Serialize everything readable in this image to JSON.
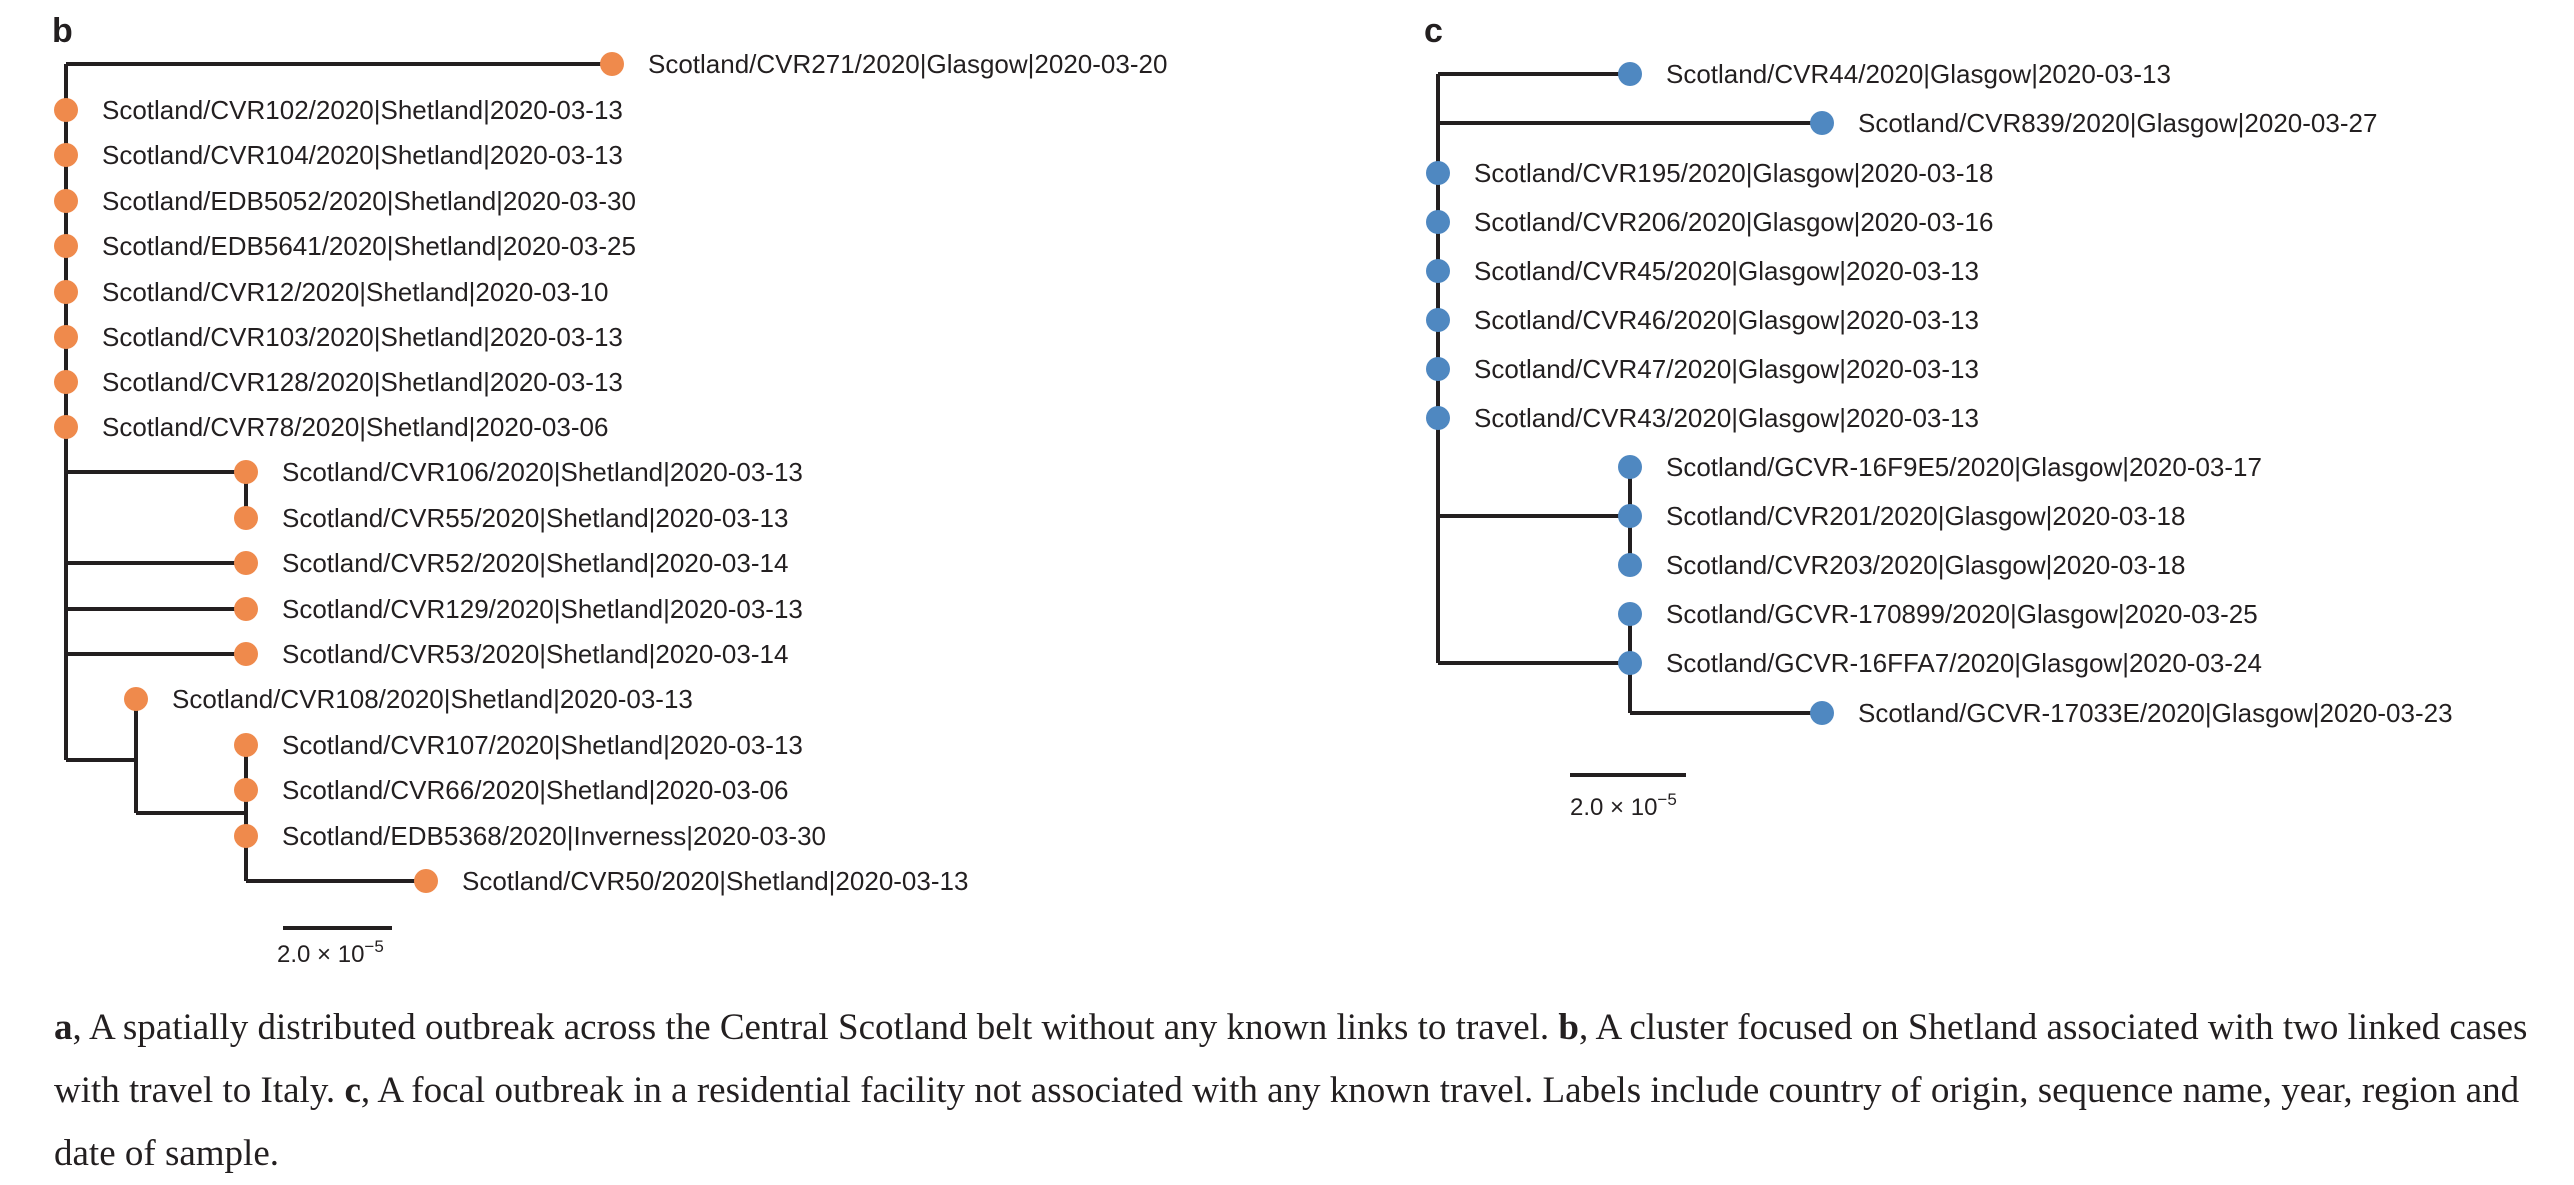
{
  "panel_b": {
    "letter": "b",
    "node_color": "#ef8a4c",
    "scale_bar": {
      "label": "2.0 × 10",
      "exponent": "−5"
    },
    "tips": [
      "Scotland/CVR271/2020|Glasgow|2020-03-20",
      "Scotland/CVR102/2020|Shetland|2020-03-13",
      "Scotland/CVR104/2020|Shetland|2020-03-13",
      "Scotland/EDB5052/2020|Shetland|2020-03-30",
      "Scotland/EDB5641/2020|Shetland|2020-03-25",
      "Scotland/CVR12/2020|Shetland|2020-03-10",
      "Scotland/CVR103/2020|Shetland|2020-03-13",
      "Scotland/CVR128/2020|Shetland|2020-03-13",
      "Scotland/CVR78/2020|Shetland|2020-03-06",
      "Scotland/CVR106/2020|Shetland|2020-03-13",
      "Scotland/CVR55/2020|Shetland|2020-03-13",
      "Scotland/CVR52/2020|Shetland|2020-03-14",
      "Scotland/CVR129/2020|Shetland|2020-03-13",
      "Scotland/CVR53/2020|Shetland|2020-03-14",
      "Scotland/CVR108/2020|Shetland|2020-03-13",
      "Scotland/CVR107/2020|Shetland|2020-03-13",
      "Scotland/CVR66/2020|Shetland|2020-03-06",
      "Scotland/EDB5368/2020|Inverness|2020-03-30",
      "Scotland/CVR50/2020|Shetland|2020-03-13"
    ]
  },
  "panel_c": {
    "letter": "c",
    "node_color": "#4f88c1",
    "scale_bar": {
      "label": "2.0 × 10",
      "exponent": "−5"
    },
    "tips": [
      "Scotland/CVR44/2020|Glasgow|2020-03-13",
      "Scotland/CVR839/2020|Glasgow|2020-03-27",
      "Scotland/CVR195/2020|Glasgow|2020-03-18",
      "Scotland/CVR206/2020|Glasgow|2020-03-16",
      "Scotland/CVR45/2020|Glasgow|2020-03-13",
      "Scotland/CVR46/2020|Glasgow|2020-03-13",
      "Scotland/CVR47/2020|Glasgow|2020-03-13",
      "Scotland/CVR43/2020|Glasgow|2020-03-13",
      "Scotland/GCVR-16F9E5/2020|Glasgow|2020-03-17",
      "Scotland/CVR201/2020|Glasgow|2020-03-18",
      "Scotland/CVR203/2020|Glasgow|2020-03-18",
      "Scotland/GCVR-170899/2020|Glasgow|2020-03-25",
      "Scotland/GCVR-16FFA7/2020|Glasgow|2020-03-24",
      "Scotland/GCVR-17033E/2020|Glasgow|2020-03-23"
    ]
  },
  "caption": {
    "a_letter": "a",
    "a_text": ", A spatially distributed outbreak across the Central Scotland belt without any known links to travel. ",
    "b_letter": "b",
    "b_text": ", A cluster focused on Shetland associated with two linked cases with travel to Italy. ",
    "c_letter": "c",
    "c_text": ", A focal outbreak in a residential facility not associated with any known travel. Labels include country of origin, sequence name, year, region and date of sample."
  }
}
